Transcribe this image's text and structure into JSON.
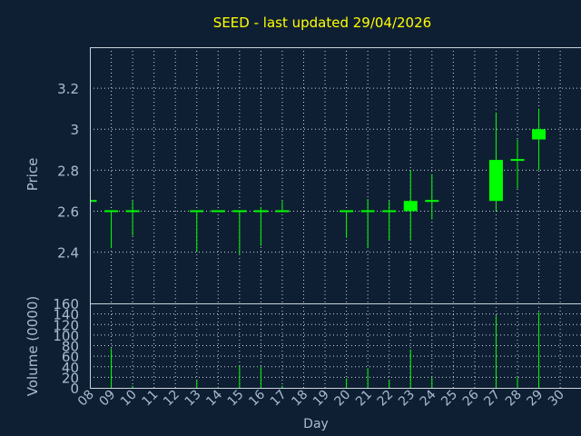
{
  "chart_data": {
    "type": "candlestick",
    "title": "SEED - last updated 29/04/2026",
    "xlabel": "Day",
    "colors": {
      "background": "#0f1f33",
      "plot_border": "#c8d2dc",
      "grid": "#c8d2dc",
      "candle": "#00ff00",
      "text": "#a8bcd0",
      "title": "#ffff00"
    },
    "x_ticks": [
      "08",
      "09",
      "10",
      "11",
      "12",
      "13",
      "14",
      "15",
      "16",
      "17",
      "18",
      "19",
      "20",
      "21",
      "22",
      "23",
      "24",
      "25",
      "26",
      "27",
      "28",
      "29",
      "30"
    ],
    "price_panel": {
      "ylabel": "Price",
      "ylim": [
        2.15,
        3.4
      ],
      "y_ticks": [
        2.4,
        2.6,
        2.8,
        3.0,
        3.2
      ],
      "y_tick_labels": [
        "2.4",
        "2.6",
        "2.8",
        "3",
        "3.2"
      ]
    },
    "volume_panel": {
      "ylabel": "Volume (0000)",
      "ylim": [
        0,
        160
      ],
      "y_ticks": [
        0,
        20,
        40,
        60,
        80,
        100,
        120,
        140,
        160
      ],
      "y_tick_labels": [
        "0",
        "20",
        "40",
        "60",
        "80",
        "100",
        "120",
        "140",
        "160"
      ]
    },
    "candles": [
      {
        "day": "08",
        "open": 2.65,
        "high": 2.65,
        "low": 2.65,
        "close": 2.65,
        "volume": 0
      },
      {
        "day": "09",
        "open": 2.6,
        "high": 2.6,
        "low": 2.42,
        "close": 2.6,
        "volume": 75
      },
      {
        "day": "10",
        "open": 2.6,
        "high": 2.65,
        "low": 2.48,
        "close": 2.6,
        "volume": 4
      },
      {
        "day": "13",
        "open": 2.6,
        "high": 2.6,
        "low": 2.4,
        "close": 2.6,
        "volume": 14
      },
      {
        "day": "14",
        "open": 2.6,
        "high": 2.6,
        "low": 2.6,
        "close": 2.6,
        "volume": 2
      },
      {
        "day": "15",
        "open": 2.6,
        "high": 2.6,
        "low": 2.39,
        "close": 2.6,
        "volume": 42
      },
      {
        "day": "16",
        "open": 2.6,
        "high": 2.62,
        "low": 2.43,
        "close": 2.6,
        "volume": 40
      },
      {
        "day": "17",
        "open": 2.6,
        "high": 2.65,
        "low": 2.6,
        "close": 2.6,
        "volume": 4
      },
      {
        "day": "20",
        "open": 2.6,
        "high": 2.6,
        "low": 2.47,
        "close": 2.6,
        "volume": 18
      },
      {
        "day": "21",
        "open": 2.6,
        "high": 2.66,
        "low": 2.42,
        "close": 2.6,
        "volume": 37
      },
      {
        "day": "22",
        "open": 2.6,
        "high": 2.65,
        "low": 2.46,
        "close": 2.6,
        "volume": 15
      },
      {
        "day": "23",
        "open": 2.6,
        "high": 2.8,
        "low": 2.46,
        "close": 2.65,
        "volume": 73
      },
      {
        "day": "24",
        "open": 2.65,
        "high": 2.78,
        "low": 2.56,
        "close": 2.65,
        "volume": 20
      },
      {
        "day": "27",
        "open": 2.65,
        "high": 3.08,
        "low": 2.6,
        "close": 2.85,
        "volume": 137
      },
      {
        "day": "28",
        "open": 2.85,
        "high": 2.95,
        "low": 2.71,
        "close": 2.85,
        "volume": 20
      },
      {
        "day": "29",
        "open": 2.95,
        "high": 3.1,
        "low": 2.8,
        "close": 3.0,
        "volume": 143
      }
    ]
  }
}
